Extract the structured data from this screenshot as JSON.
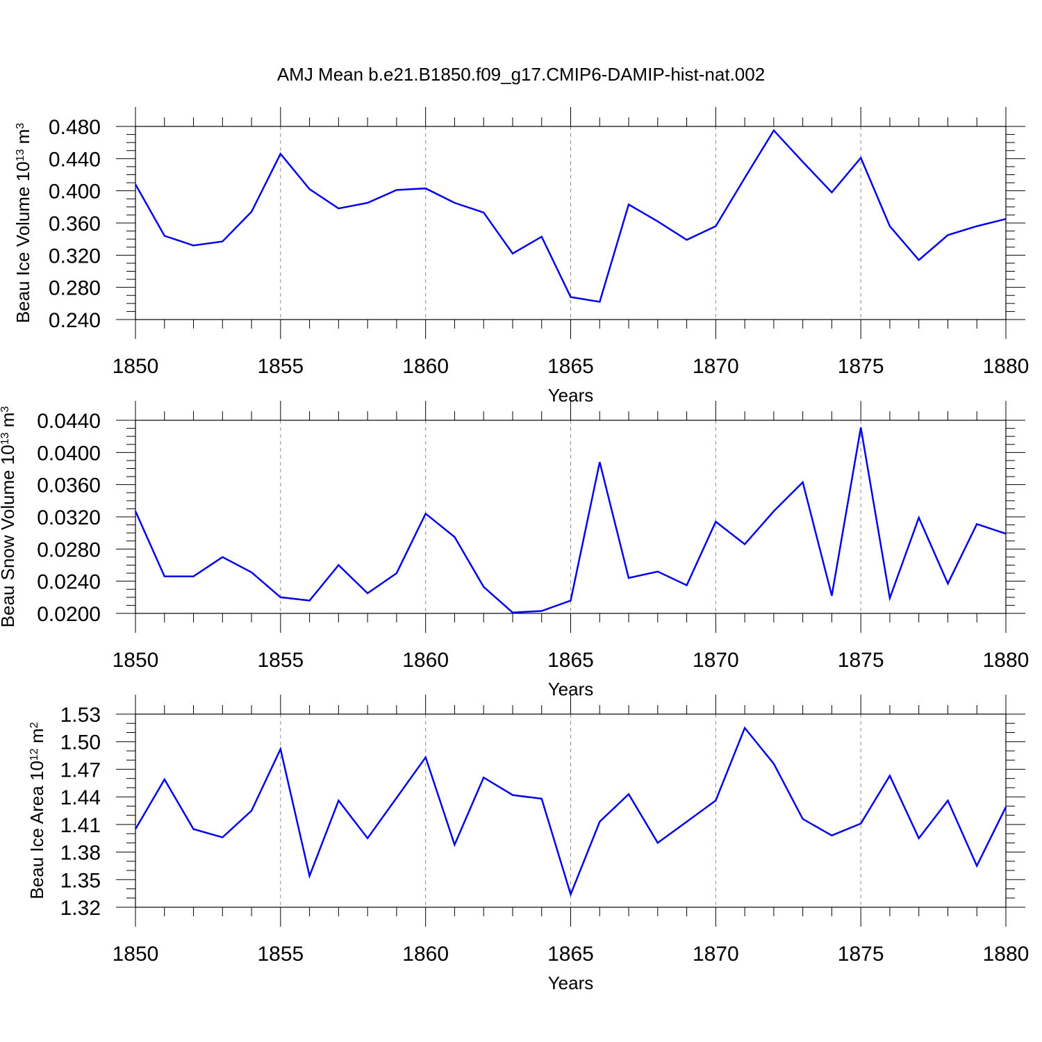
{
  "title": "AMJ Mean b.e21.B1850.f09_g17.CMIP6-DAMIP-hist-nat.002",
  "colors": {
    "line": "#0000ee",
    "axis": "#000000",
    "grid": "#888888"
  },
  "chart_data": [
    {
      "type": "line",
      "title": "",
      "xlabel": "Years",
      "ylabel_main": "Beau Ice Volume 10",
      "ylabel_exp": "13",
      "ylabel_unit": " m",
      "ylabel_unit_exp": "3",
      "xlim": [
        1850,
        1880
      ],
      "ylim": [
        0.24,
        0.48
      ],
      "x_ticks": [
        "1850",
        "1855",
        "1860",
        "1865",
        "1870",
        "1875",
        "1880"
      ],
      "y_ticks": [
        "0.240",
        "0.280",
        "0.320",
        "0.360",
        "0.400",
        "0.440",
        "0.480"
      ],
      "x": [
        1850,
        1851,
        1852,
        1853,
        1854,
        1855,
        1856,
        1857,
        1858,
        1859,
        1860,
        1861,
        1862,
        1863,
        1864,
        1865,
        1866,
        1867,
        1868,
        1869,
        1870,
        1871,
        1872,
        1873,
        1874,
        1875,
        1876,
        1877,
        1878,
        1879,
        1880
      ],
      "values": [
        0.408,
        0.344,
        0.332,
        0.337,
        0.374,
        0.446,
        0.402,
        0.378,
        0.385,
        0.401,
        0.403,
        0.385,
        0.373,
        0.322,
        0.343,
        0.268,
        0.262,
        0.383,
        0.362,
        0.339,
        0.356,
        0.416,
        0.475,
        0.436,
        0.398,
        0.441,
        0.356,
        0.314,
        0.345,
        0.356,
        0.365
      ]
    },
    {
      "type": "line",
      "title": "",
      "xlabel": "Years",
      "ylabel_main": "Beau Snow Volume 10",
      "ylabel_exp": "13",
      "ylabel_unit": " m",
      "ylabel_unit_exp": "3",
      "xlim": [
        1850,
        1880
      ],
      "ylim": [
        0.02,
        0.044
      ],
      "x_ticks": [
        "1850",
        "1855",
        "1860",
        "1865",
        "1870",
        "1875",
        "1880"
      ],
      "y_ticks": [
        "0.0200",
        "0.0240",
        "0.0280",
        "0.0320",
        "0.0360",
        "0.0400",
        "0.0440"
      ],
      "x": [
        1850,
        1851,
        1852,
        1853,
        1854,
        1855,
        1856,
        1857,
        1858,
        1859,
        1860,
        1861,
        1862,
        1863,
        1864,
        1865,
        1866,
        1867,
        1868,
        1869,
        1870,
        1871,
        1872,
        1873,
        1874,
        1875,
        1876,
        1877,
        1878,
        1879,
        1880
      ],
      "values": [
        0.0327,
        0.0246,
        0.0246,
        0.027,
        0.0251,
        0.022,
        0.0216,
        0.026,
        0.0225,
        0.025,
        0.0324,
        0.0295,
        0.0233,
        0.0201,
        0.0203,
        0.0216,
        0.0388,
        0.0244,
        0.0252,
        0.0235,
        0.0314,
        0.0286,
        0.0327,
        0.0363,
        0.0222,
        0.0431,
        0.0219,
        0.0319,
        0.0237,
        0.0311,
        0.0299
      ]
    },
    {
      "type": "line",
      "title": "",
      "xlabel": "Years",
      "ylabel_main": "Beau Ice Area 10",
      "ylabel_exp": "12",
      "ylabel_unit": " m",
      "ylabel_unit_exp": "2",
      "xlim": [
        1850,
        1880
      ],
      "ylim": [
        1.32,
        1.53
      ],
      "x_ticks": [
        "1850",
        "1855",
        "1860",
        "1865",
        "1870",
        "1875",
        "1880"
      ],
      "y_ticks": [
        "1.32",
        "1.35",
        "1.38",
        "1.41",
        "1.44",
        "1.47",
        "1.50",
        "1.53"
      ],
      "x": [
        1850,
        1851,
        1852,
        1853,
        1854,
        1855,
        1856,
        1857,
        1858,
        1859,
        1860,
        1861,
        1862,
        1863,
        1864,
        1865,
        1866,
        1867,
        1868,
        1869,
        1870,
        1871,
        1872,
        1873,
        1874,
        1875,
        1876,
        1877,
        1878,
        1879,
        1880
      ],
      "values": [
        1.405,
        1.459,
        1.405,
        1.396,
        1.425,
        1.492,
        1.354,
        1.436,
        1.395,
        1.439,
        1.483,
        1.388,
        1.461,
        1.442,
        1.438,
        1.334,
        1.413,
        1.443,
        1.39,
        1.413,
        1.436,
        1.515,
        1.476,
        1.416,
        1.398,
        1.411,
        1.463,
        1.395,
        1.436,
        1.365,
        1.429
      ]
    }
  ]
}
